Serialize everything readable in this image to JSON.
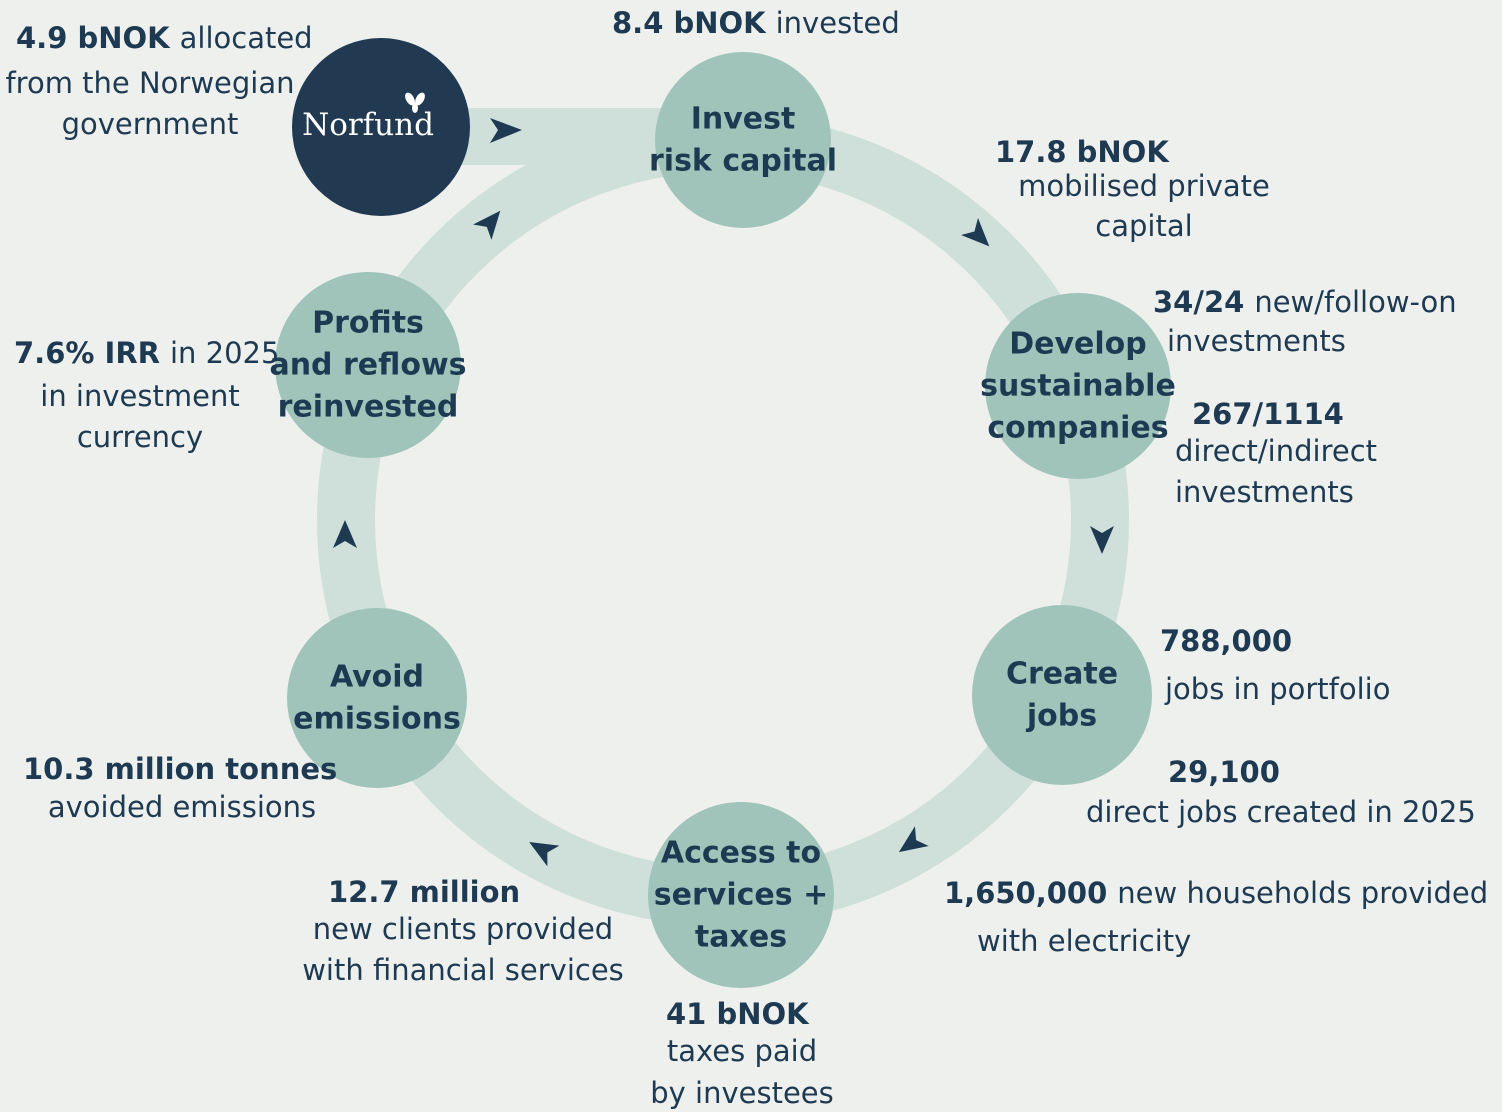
{
  "logo": "Norfund",
  "nodes": [
    {
      "label": [
        "Invest",
        "risk capital"
      ]
    },
    {
      "label": [
        "Develop",
        "sustainable",
        "companies"
      ]
    },
    {
      "label": [
        "Create",
        "jobs"
      ]
    },
    {
      "label": [
        "Access to",
        "services +",
        "taxes"
      ]
    },
    {
      "label": [
        "Avoid",
        "emissions"
      ]
    },
    {
      "label": [
        "Profits",
        "and reflows",
        "reinvested"
      ]
    }
  ],
  "annotations": [
    {
      "lines": [
        {
          "bold": "4.9 bNOK",
          "text": "allocated"
        },
        {
          "text": "from the Norwegian"
        },
        {
          "text": "government"
        }
      ]
    },
    {
      "lines": [
        {
          "bold": "8.4 bNOK",
          "text": "invested"
        }
      ]
    },
    {
      "lines": [
        {
          "bold": "17.8 bNOK"
        },
        {
          "text": "mobilised private"
        },
        {
          "text": "capital"
        }
      ]
    },
    {
      "lines": [
        {
          "bold": "34/24",
          "text": "new/follow-on"
        },
        {
          "text": "investments"
        }
      ]
    },
    {
      "lines": [
        {
          "bold": "267/1114"
        },
        {
          "text": "direct/indirect"
        },
        {
          "text": "investments"
        }
      ]
    },
    {
      "lines": [
        {
          "bold": "788,000"
        },
        {
          "text": "jobs in portfolio"
        }
      ]
    },
    {
      "lines": [
        {
          "bold": "29,100"
        },
        {
          "text": "direct jobs created in 2025"
        }
      ]
    },
    {
      "lines": [
        {
          "bold": "1,650,000",
          "text": "new households provided"
        },
        {
          "text": "with electricity"
        }
      ]
    },
    {
      "lines": [
        {
          "bold": "41 bNOK"
        },
        {
          "text": "taxes paid"
        },
        {
          "text": "by investees"
        }
      ]
    },
    {
      "lines": [
        {
          "bold": "12.7 million"
        },
        {
          "text": "new clients provided"
        },
        {
          "text": "with financial services"
        }
      ]
    },
    {
      "lines": [
        {
          "bold": "10.3 million tonnes"
        },
        {
          "text": "avoided emissions"
        }
      ]
    },
    {
      "lines": [
        {
          "bold": "7.6% IRR",
          "text": "in 2025"
        },
        {
          "text": "in investment"
        },
        {
          "text": "currency"
        }
      ]
    }
  ]
}
